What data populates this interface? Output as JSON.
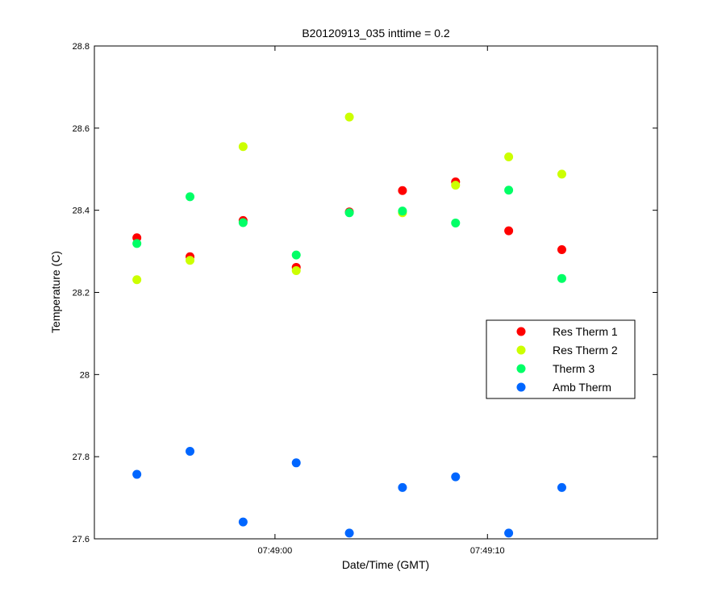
{
  "chart_data": {
    "type": "scatter",
    "title": "B20120913_035 inttime = 0.2",
    "xlabel": "Date/Time (GMT)",
    "ylabel": "Temperature (C)",
    "x_unit": "seconds",
    "xlim": [
      46.5,
      73.0
    ],
    "ylim": [
      27.6,
      28.8
    ],
    "x_ticks": [
      {
        "value": 55,
        "label": "07:49:00"
      },
      {
        "value": 65,
        "label": "07:49:10"
      }
    ],
    "y_ticks": [
      {
        "value": 27.6,
        "label": "27.6"
      },
      {
        "value": 27.8,
        "label": "27.8"
      },
      {
        "value": 28.0,
        "label": "28"
      },
      {
        "value": 28.2,
        "label": "28.2"
      },
      {
        "value": 28.4,
        "label": "28.4"
      },
      {
        "value": 28.6,
        "label": "28.6"
      },
      {
        "value": 28.8,
        "label": "28.8"
      }
    ],
    "grid": false,
    "legend_position": "right",
    "x": [
      48.5,
      51.0,
      53.5,
      56.0,
      58.5,
      61.0,
      63.5,
      66.0,
      68.5
    ],
    "series": [
      {
        "name": "Res Therm 1",
        "color": "#ff0000",
        "values": [
          28.333,
          28.287,
          28.375,
          28.261,
          28.396,
          28.448,
          28.469,
          28.35,
          28.304
        ]
      },
      {
        "name": "Res Therm 2",
        "color": "#ccff00",
        "values": [
          28.231,
          28.278,
          28.555,
          28.253,
          28.627,
          28.394,
          28.461,
          28.53,
          28.488
        ]
      },
      {
        "name": "Therm 3",
        "color": "#00ff66",
        "values": [
          28.319,
          28.433,
          28.37,
          28.291,
          28.394,
          28.398,
          28.369,
          28.449,
          28.234
        ]
      },
      {
        "name": "Amb Therm",
        "color": "#0066ff",
        "values": [
          27.757,
          27.813,
          27.641,
          27.785,
          27.614,
          27.725,
          27.751,
          27.614,
          27.725
        ]
      }
    ]
  }
}
